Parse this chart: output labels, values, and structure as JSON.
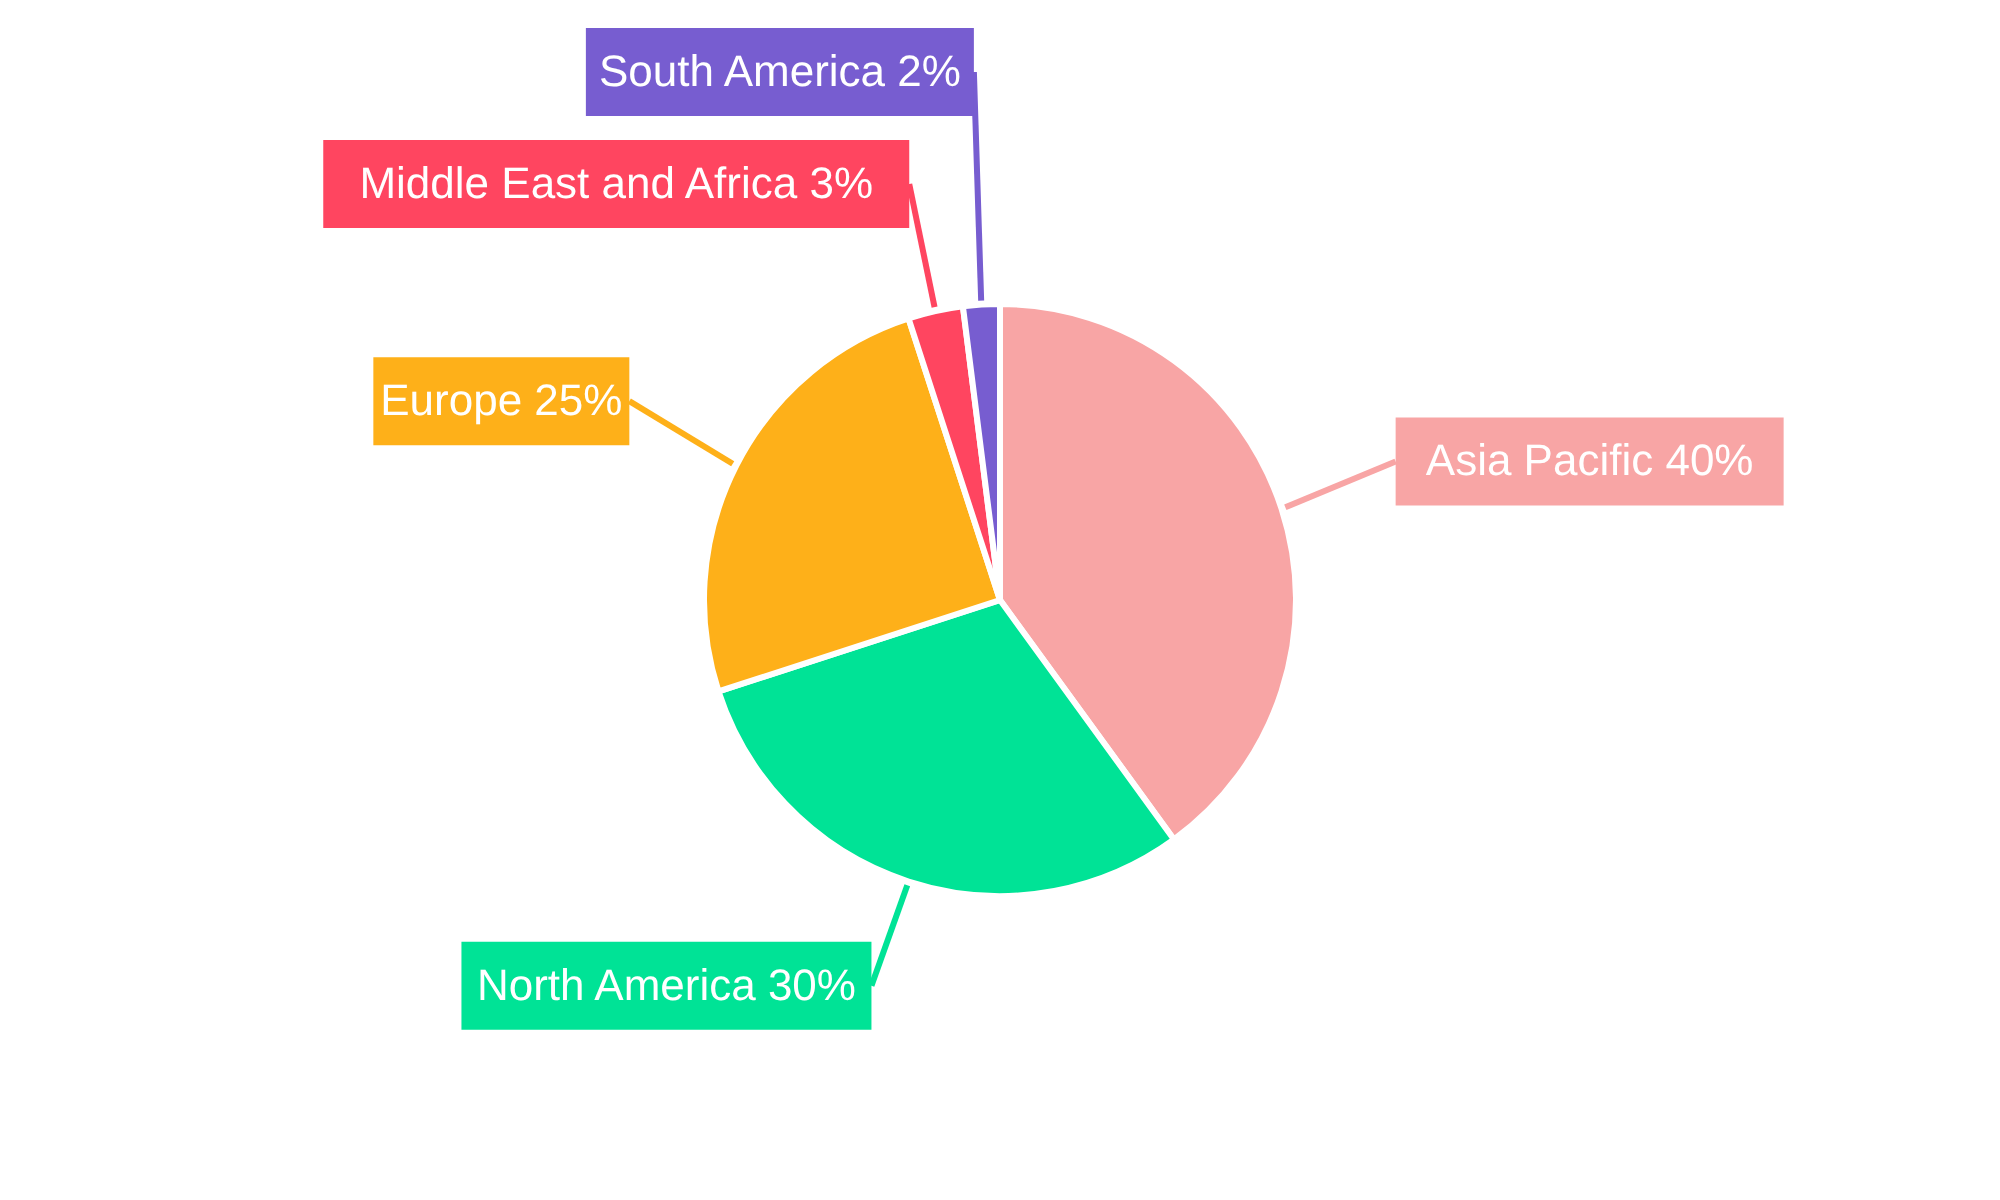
{
  "chart_data": {
    "type": "pie",
    "categories": [
      "Asia Pacific",
      "North America",
      "Europe",
      "Middle East and Africa",
      "South America"
    ],
    "values": [
      40,
      30,
      25,
      3,
      2
    ],
    "colors": [
      "#f8a5a5",
      "#00e396",
      "#feb019",
      "#ff4560",
      "#775dd0"
    ],
    "value_labels": [
      "40%",
      "30%",
      "25%",
      "3%",
      "2%"
    ]
  }
}
